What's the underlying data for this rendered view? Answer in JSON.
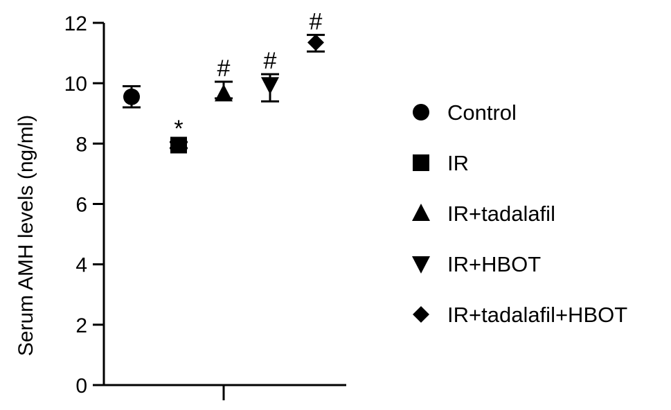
{
  "chart_data": {
    "type": "scatter",
    "title": "",
    "xlabel": "",
    "ylabel": "Serum AMH levels (ng/ml)",
    "ylim": [
      0,
      12
    ],
    "yticks": [
      0,
      2,
      4,
      6,
      8,
      10,
      12
    ],
    "grid": false,
    "legend_position": "right",
    "series": [
      {
        "name": "Control",
        "marker": "circle",
        "value": 9.55,
        "err_low": 9.2,
        "err_high": 9.9,
        "annotation": ""
      },
      {
        "name": "IR",
        "marker": "square",
        "value": 7.95,
        "err_low": 7.85,
        "err_high": 8.05,
        "annotation": "*"
      },
      {
        "name": "IR+tadalafil",
        "marker": "triangle-up",
        "value": 9.65,
        "err_low": 9.5,
        "err_high": 10.05,
        "annotation": "#"
      },
      {
        "name": "IR+HBOT",
        "marker": "triangle-down",
        "value": 9.95,
        "err_low": 9.4,
        "err_high": 10.3,
        "annotation": "#"
      },
      {
        "name": "IR+tadalafil+HBOT",
        "marker": "diamond",
        "value": 11.35,
        "err_low": 11.05,
        "err_high": 11.6,
        "annotation": "#"
      }
    ],
    "colors": {
      "marker": "#000000",
      "axis": "#000000"
    }
  }
}
